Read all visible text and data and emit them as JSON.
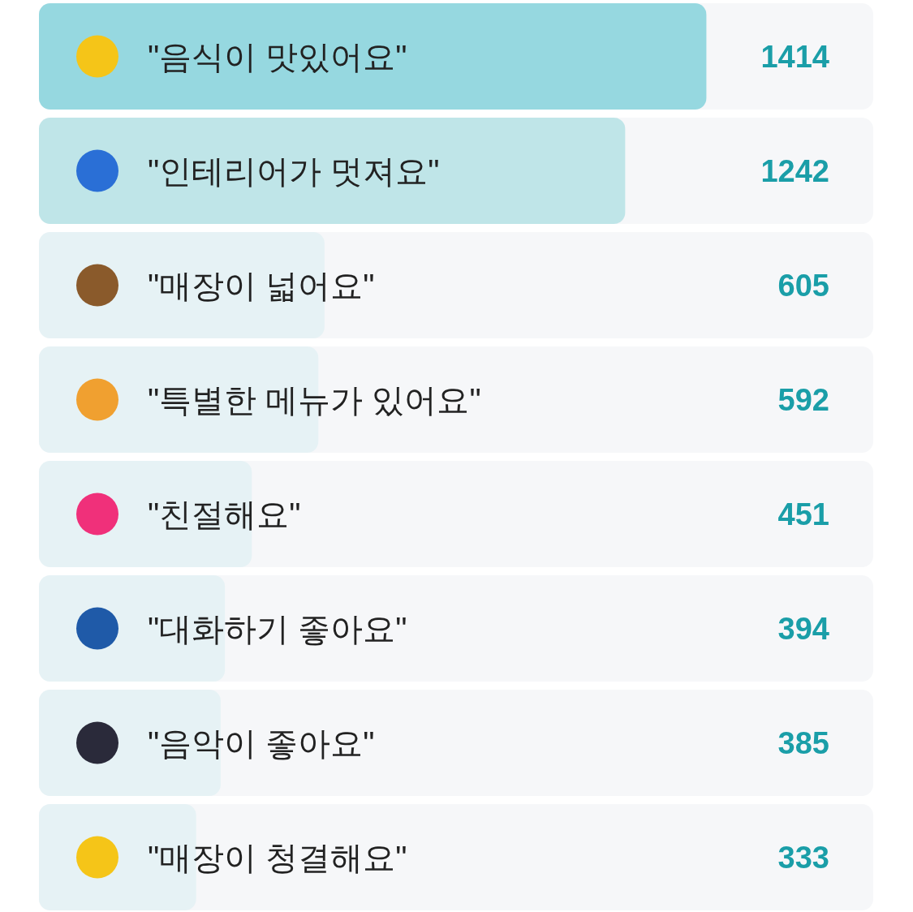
{
  "chart_data": {
    "type": "bar",
    "orientation": "horizontal",
    "categories": [
      "\"음식이 맛있어요\"",
      "\"인테리어가 멋져요\"",
      "\"매장이 넓어요\"",
      "\"특별한 메뉴가 있어요\"",
      "\"친절해요\"",
      "\"대화하기 좋아요\"",
      "\"음악이 좋아요\"",
      "\"매장이 청결해요\""
    ],
    "values": [
      1414,
      1242,
      605,
      592,
      451,
      394,
      385,
      333
    ],
    "colors": [
      "#96d8e0",
      "#bfe5e8",
      "#e6f2f5",
      "#e6f2f5",
      "#e6f2f5",
      "#e6f2f5",
      "#e6f2f5",
      "#e6f2f5"
    ],
    "data_labels": true
  }
}
